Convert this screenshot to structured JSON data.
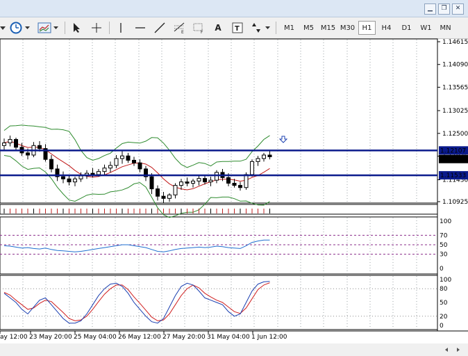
{
  "window": {
    "min_icon": "minimize-icon",
    "max_icon": "restore-icon",
    "close_icon": "close-icon"
  },
  "toolbar": {
    "tools": [
      "clock-icon",
      "chart-properties-icon",
      "cursor-icon",
      "crosshair-icon",
      "vertical-line-icon",
      "horizontal-line-icon",
      "trendline-icon",
      "fibonacci-expansion-icon",
      "fibonacci-fan-icon",
      "text-icon",
      "text-label-icon",
      "arrows-icon"
    ],
    "text_tool_label": "A",
    "timeframes": [
      "M1",
      "M5",
      "M15",
      "M30",
      "H1",
      "H4",
      "D1",
      "W1",
      "MN"
    ],
    "active_timeframe": "H1"
  },
  "chart_data": {
    "type": "candlestick",
    "symbol_price_levels": {
      "upper_line": "1.12107",
      "current": "1.11908",
      "lower_line": "1.11533"
    },
    "price_axis_ticks": [
      "1.14615",
      "1.14090",
      "1.13565",
      "1.13025",
      "1.12500",
      "1.11975",
      "1.11430",
      "1.10925"
    ],
    "rsi_panel": {
      "ticks": [
        "100",
        "70",
        "50",
        "30",
        "0"
      ],
      "levels": [
        70,
        50,
        30
      ]
    },
    "stoch_panel": {
      "ticks": [
        "100",
        "80",
        "50",
        "20",
        "0"
      ],
      "levels": [
        80,
        20
      ]
    },
    "time_axis_labels": [
      "ay 12:00",
      "23 May 20:00",
      "25 May 04:00",
      "26 May 12:00",
      "27 May 20:00",
      "31 May 04:00",
      "1 Jun 12:00"
    ],
    "candles_ohlc": [
      [
        1.1222,
        1.1238,
        1.1212,
        1.1228
      ],
      [
        1.1228,
        1.1245,
        1.122,
        1.1236
      ],
      [
        1.1236,
        1.124,
        1.121,
        1.1218
      ],
      [
        1.1218,
        1.1228,
        1.1198,
        1.1205
      ],
      [
        1.1205,
        1.1215,
        1.119,
        1.12
      ],
      [
        1.12,
        1.123,
        1.1195,
        1.1222
      ],
      [
        1.1222,
        1.1232,
        1.1208,
        1.1215
      ],
      [
        1.1215,
        1.1225,
        1.1185,
        1.119
      ],
      [
        1.119,
        1.12,
        1.116,
        1.1168
      ],
      [
        1.1168,
        1.1178,
        1.114,
        1.115
      ],
      [
        1.115,
        1.1162,
        1.1135,
        1.1145
      ],
      [
        1.1145,
        1.1155,
        1.113,
        1.1138
      ],
      [
        1.1138,
        1.115,
        1.1128,
        1.1145
      ],
      [
        1.1145,
        1.116,
        1.1138,
        1.1152
      ],
      [
        1.1152,
        1.1165,
        1.1145,
        1.1158
      ],
      [
        1.1158,
        1.117,
        1.1148,
        1.1155
      ],
      [
        1.1155,
        1.1168,
        1.115,
        1.1162
      ],
      [
        1.1162,
        1.1178,
        1.1155,
        1.117
      ],
      [
        1.117,
        1.1185,
        1.116,
        1.1176
      ],
      [
        1.1176,
        1.12,
        1.117,
        1.1192
      ],
      [
        1.1192,
        1.121,
        1.118,
        1.1198
      ],
      [
        1.1198,
        1.1205,
        1.1182,
        1.1188
      ],
      [
        1.1188,
        1.1196,
        1.1175,
        1.1182
      ],
      [
        1.1182,
        1.119,
        1.116,
        1.1168
      ],
      [
        1.1168,
        1.1175,
        1.114,
        1.115
      ],
      [
        1.115,
        1.1158,
        1.111,
        1.1122
      ],
      [
        1.1122,
        1.113,
        1.1095,
        1.1105
      ],
      [
        1.1105,
        1.1115,
        1.109,
        1.11
      ],
      [
        1.11,
        1.1112,
        1.1092,
        1.1108
      ],
      [
        1.1108,
        1.1135,
        1.11,
        1.113
      ],
      [
        1.113,
        1.1145,
        1.112,
        1.1138
      ],
      [
        1.1138,
        1.1148,
        1.1128,
        1.1135
      ],
      [
        1.1135,
        1.1145,
        1.1125,
        1.114
      ],
      [
        1.114,
        1.1152,
        1.113,
        1.1146
      ],
      [
        1.1146,
        1.1155,
        1.1132,
        1.1138
      ],
      [
        1.1138,
        1.115,
        1.1128,
        1.1142
      ],
      [
        1.1142,
        1.1165,
        1.1135,
        1.116
      ],
      [
        1.116,
        1.1168,
        1.114,
        1.1148
      ],
      [
        1.1148,
        1.1158,
        1.1128,
        1.1135
      ],
      [
        1.1135,
        1.1145,
        1.1125,
        1.113
      ],
      [
        1.113,
        1.1138,
        1.1118,
        1.1125
      ],
      [
        1.1125,
        1.116,
        1.112,
        1.1155
      ],
      [
        1.1155,
        1.119,
        1.115,
        1.1185
      ],
      [
        1.1185,
        1.1198,
        1.1175,
        1.1192
      ],
      [
        1.1192,
        1.1205,
        1.1185,
        1.12
      ],
      [
        1.12,
        1.121,
        1.119,
        1.1196
      ]
    ],
    "rsi": [
      48,
      47,
      45,
      43,
      44,
      42,
      41,
      43,
      40,
      38,
      37,
      36,
      35,
      36,
      38,
      40,
      42,
      44,
      46,
      48,
      50,
      50,
      48,
      46,
      44,
      40,
      36,
      35,
      37,
      40,
      42,
      43,
      44,
      45,
      44,
      45,
      47,
      46,
      44,
      43,
      42,
      48,
      55,
      58,
      60,
      60
    ],
    "stoch_main": [
      70,
      60,
      50,
      35,
      25,
      40,
      55,
      60,
      45,
      30,
      15,
      5,
      5,
      10,
      25,
      45,
      65,
      80,
      90,
      92,
      85,
      70,
      50,
      35,
      20,
      8,
      5,
      15,
      40,
      65,
      85,
      92,
      88,
      75,
      60,
      55,
      50,
      45,
      30,
      20,
      25,
      50,
      75,
      90,
      95,
      96
    ],
    "stoch_signal": [
      72,
      66,
      55,
      45,
      35,
      38,
      48,
      55,
      52,
      40,
      28,
      15,
      10,
      12,
      20,
      35,
      52,
      68,
      80,
      88,
      88,
      78,
      62,
      48,
      33,
      18,
      10,
      12,
      25,
      45,
      65,
      80,
      88,
      82,
      70,
      62,
      55,
      50,
      40,
      30,
      26,
      38,
      58,
      78,
      88,
      93
    ]
  }
}
